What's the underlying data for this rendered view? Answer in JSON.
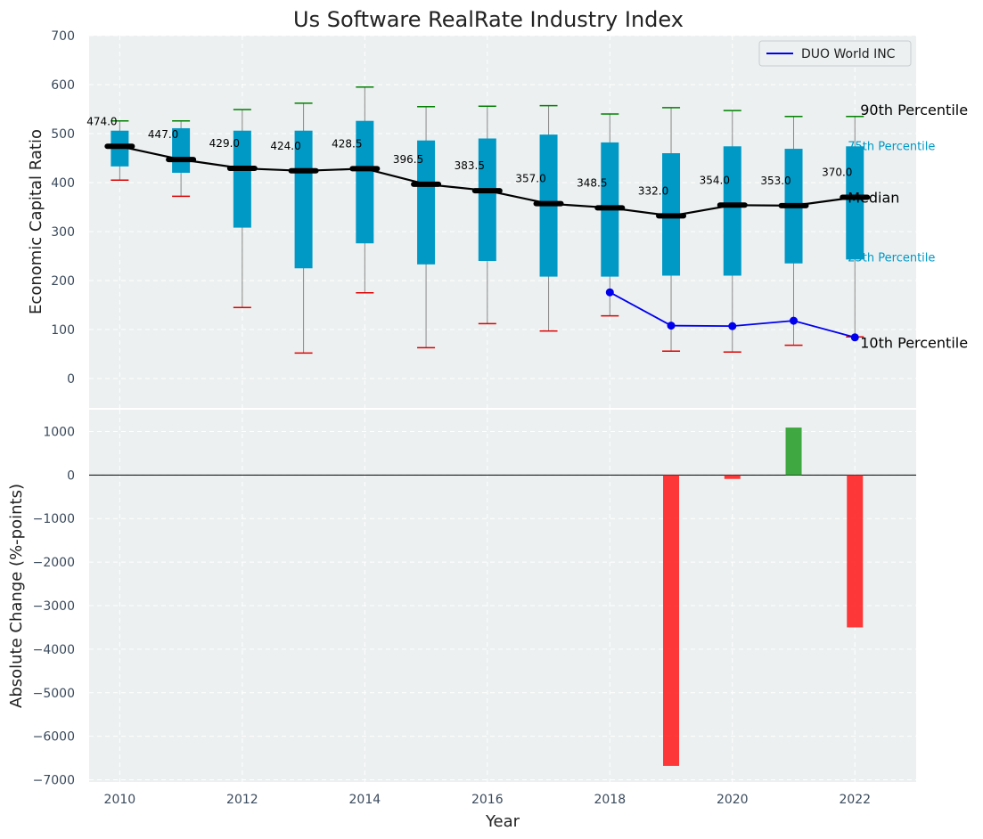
{
  "chart_data": [
    {
      "type": "box",
      "title": "Us Software RealRate Industry Index",
      "ylabel": "Economic Capital Ratio",
      "ylim": [
        -60,
        700
      ],
      "yticks": [
        0,
        100,
        200,
        300,
        400,
        500,
        600,
        700
      ],
      "x": [
        2010,
        2011,
        2012,
        2013,
        2014,
        2015,
        2016,
        2017,
        2018,
        2019,
        2020,
        2021,
        2022
      ],
      "p10": [
        405,
        372,
        145,
        52,
        175,
        63,
        112,
        97,
        128,
        56,
        54,
        68,
        85
      ],
      "p25": [
        433,
        420,
        308,
        225,
        276,
        233,
        240,
        208,
        208,
        210,
        210,
        235,
        243
      ],
      "median": [
        474.0,
        447.0,
        429.0,
        424.0,
        428.5,
        396.5,
        383.5,
        357.0,
        348.5,
        332.0,
        354.0,
        353.0,
        370.0
      ],
      "median_labels": [
        "474.0",
        "447.0",
        "429.0",
        "424.0",
        "428.5",
        "396.5",
        "383.5",
        "357.0",
        "348.5",
        "332.0",
        "354.0",
        "353.0",
        "370.0"
      ],
      "p75": [
        506,
        511,
        506,
        506,
        526,
        486,
        490,
        498,
        482,
        460,
        474,
        469,
        474
      ],
      "p90": [
        526,
        526,
        549,
        562,
        595,
        555,
        556,
        557,
        540,
        553,
        547,
        535,
        535
      ],
      "series": [
        {
          "name": "DUO World INC",
          "color": "#0000ee",
          "x": [
            2018,
            2019,
            2020,
            2021,
            2022
          ],
          "values": [
            176,
            108,
            107,
            118,
            84
          ]
        }
      ],
      "percentile_labels": {
        "p90": "90th Percentile",
        "p75": "75th Percentile",
        "median": "Median",
        "p25": "25th Percentile",
        "p10": "10th Percentile"
      },
      "legend": "top-right",
      "grid": true,
      "colors": {
        "box": "#0099c6",
        "median": "#000000",
        "whisker": "#888888",
        "p90_cap": "#008000",
        "p10_cap": "#dd0000",
        "background": "#ecf0f1"
      }
    },
    {
      "type": "bar",
      "ylabel": "Absolute Change (%-points)",
      "xlabel": "Year",
      "ylim": [
        -7050,
        1500
      ],
      "yticks": [
        1000,
        0,
        -1000,
        -2000,
        -3000,
        -4000,
        -5000,
        -6000,
        -7000
      ],
      "yticklabels": [
        "1000",
        "0",
        "−1000",
        "−2000",
        "−3000",
        "−4000",
        "−5000",
        "−6000",
        "−7000"
      ],
      "xlim": [
        2009.5,
        2023.0
      ],
      "xticks": [
        2010,
        2012,
        2014,
        2016,
        2018,
        2020,
        2022
      ],
      "x": [
        2019,
        2020,
        2021,
        2022
      ],
      "values": [
        -6680,
        -90,
        1090,
        -3500
      ],
      "grid": true,
      "colors": {
        "positive": "#2ca02c",
        "negative": "#ff2222",
        "background": "#ecf0f1"
      }
    }
  ]
}
